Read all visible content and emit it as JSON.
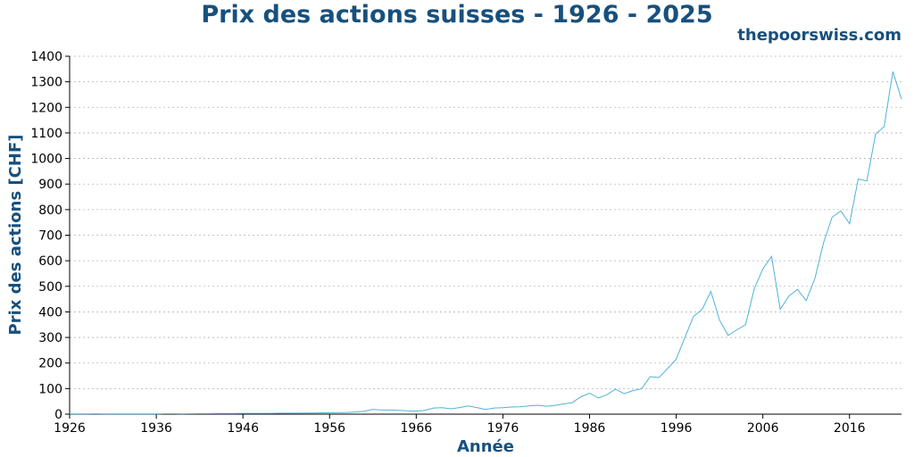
{
  "header": {
    "title": "Prix des actions suisses - 1926 - 2025",
    "brand": "thepoorswiss.com"
  },
  "chart_data": {
    "type": "line",
    "title": "Prix des actions suisses - 1926 - 2025",
    "xlabel": "Année",
    "ylabel": "Prix des actions [CHF]",
    "xlim": [
      1926,
      2022
    ],
    "ylim": [
      0,
      1400
    ],
    "xticks": [
      1926,
      1936,
      1946,
      1956,
      1966,
      1976,
      1986,
      1996,
      2006,
      2016
    ],
    "yticks": [
      0,
      100,
      200,
      300,
      400,
      500,
      600,
      700,
      800,
      900,
      1000,
      1100,
      1200,
      1300,
      1400
    ],
    "grid": "horizontal-dotted",
    "line_color": "#4fb3d9",
    "series": [
      {
        "x": [
          1926,
          1927,
          1928,
          1929,
          1930,
          1931,
          1932,
          1933,
          1934,
          1935,
          1936,
          1937,
          1938,
          1939,
          1940,
          1941,
          1942,
          1943,
          1944,
          1945,
          1946,
          1947,
          1948,
          1949,
          1950,
          1951,
          1952,
          1953,
          1954,
          1955,
          1956,
          1957,
          1958,
          1959,
          1960,
          1961,
          1962,
          1963,
          1964,
          1965,
          1966,
          1967,
          1968,
          1969,
          1970,
          1971,
          1972,
          1973,
          1974,
          1975,
          1976,
          1977,
          1978,
          1979,
          1980,
          1981,
          1982,
          1983,
          1984,
          1985,
          1986,
          1987,
          1988,
          1989,
          1990,
          1991,
          1992,
          1993,
          1994,
          1995,
          1996,
          1997,
          1998,
          1999,
          2000,
          2001,
          2002,
          2003,
          2004,
          2005,
          2006,
          2007,
          2008,
          2009,
          2010,
          2011,
          2012,
          2013,
          2014,
          2015,
          2016,
          2017,
          2018,
          2019,
          2020,
          2021,
          2022
        ],
        "y": [
          1,
          1,
          1.2,
          1.3,
          1.2,
          1,
          0.9,
          1,
          1,
          1,
          1.2,
          1.6,
          1.7,
          1.5,
          1.6,
          2,
          2.2,
          2.3,
          2.4,
          2.7,
          3,
          3.1,
          3,
          3.2,
          3.4,
          3.7,
          3.9,
          4.2,
          4.6,
          5.4,
          5.5,
          5.8,
          6.5,
          8.5,
          11,
          19,
          16,
          16,
          15,
          13,
          12,
          15,
          24,
          25,
          21,
          26,
          32,
          26,
          18,
          24,
          25,
          28,
          29,
          32,
          35,
          31,
          34,
          40,
          45,
          68,
          82,
          63,
          76,
          98,
          80,
          92,
          99,
          147,
          143,
          178,
          215,
          300,
          382,
          410,
          480,
          368,
          308,
          330,
          350,
          490,
          568,
          617,
          410,
          462,
          488,
          444,
          530,
          670,
          770,
          795,
          745,
          920,
          912,
          1095,
          1125,
          1340,
          1232
        ]
      }
    ]
  }
}
